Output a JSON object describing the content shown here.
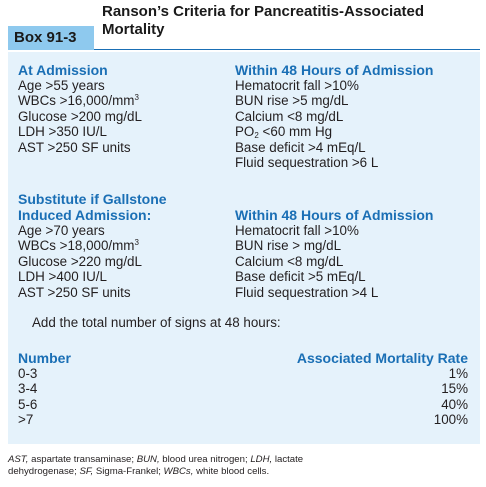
{
  "box": {
    "tag": "Box 91-3",
    "title": "Ranson’s Criteria for Pancreatitis-Associated Mortality"
  },
  "admission": {
    "heading": "At Admission",
    "items": [
      "Age >55 years",
      "WBCs >16,000/mm",
      "Glucose >200 mg/dL",
      "LDH >350 IU/L",
      "AST >250 SF units"
    ],
    "wbc_sup": "3"
  },
  "within48_a": {
    "heading": "Within 48 Hours of Admission",
    "items": [
      "Hematocrit fall >10%",
      "BUN rise >5 mg/dL",
      "Calcium <8 mg/dL",
      "<60 mm Hg",
      "Base deficit >4 mEq/L",
      "Fluid sequestration >6 L"
    ],
    "po2_p": "PO",
    "po2_sub": "2"
  },
  "gallstone": {
    "heading_line1": "Substitute if Gallstone",
    "heading_line2": "Induced Admission:",
    "items": [
      "Age >70 years",
      "WBCs >18,000/mm",
      "Glucose >220 mg/dL",
      "LDH >400 IU/L",
      "AST >250 SF units"
    ],
    "wbc_sup": "3"
  },
  "within48_b": {
    "heading": "Within 48 Hours of Admission",
    "items": [
      "Hematocrit fall >10%",
      "BUN rise > mg/dL",
      "Calcium <8 mg/dL",
      "Base deficit >5 mEq/L",
      "Fluid sequestration >4 L"
    ]
  },
  "instruction": "Add the total number of signs at 48 hours:",
  "mortality": {
    "number_heading": "Number",
    "rate_heading": "Associated Mortality Rate",
    "numbers": [
      "0-3",
      "3-4",
      "5-6",
      ">7"
    ],
    "rates": [
      "1%",
      "15%",
      "40%",
      "100%"
    ]
  },
  "footnote": {
    "ast_abbr": "AST,",
    "ast_def": " aspartate transaminase; ",
    "bun_abbr": "BUN,",
    "bun_def": " blood urea nitrogen; ",
    "ldh_abbr": "LDH,",
    "ldh_def": " lactate",
    "ldh_def2": "dehydrogenase; ",
    "sf_abbr": "SF,",
    "sf_def": " Sigma-Frankel; ",
    "wbc_abbr": "WBCs,",
    "wbc_def": " white blood cells."
  },
  "colors": {
    "heading_blue": "#1a6fb5",
    "box_tag_bg": "#8ec9ee",
    "panel_bg": "#e5f2fb"
  }
}
